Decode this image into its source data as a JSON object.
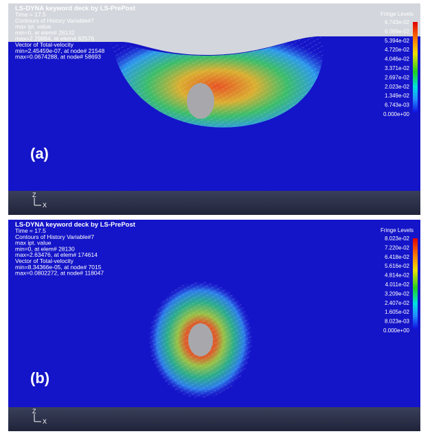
{
  "panels": [
    {
      "title": "LS-DYNA keyword deck by LS-PrePost",
      "info": [
        "Time =      17.5",
        "Contours of History Variable#7",
        "max ipt. value",
        " min=0, at elem# 28132",
        " max=2.29884, at elem# 82576",
        "Vector of Total-velocity",
        " min=2.45459e-07, at node# 21548",
        " max=0.0674288, at node# 58693"
      ],
      "fringe_title": "Fringe Levels",
      "fringe_levels": [
        "6.743e-02",
        "6.069e-02",
        "5.394e-02",
        "4.720e-02",
        "4.046e-02",
        "3.371e-02",
        "2.697e-02",
        "2.023e-02",
        "1.349e-02",
        "6.743e-03",
        "0.000e+00"
      ],
      "label": "(a)",
      "axis_z": "Z",
      "axis_x": "X"
    },
    {
      "title": "LS-DYNA keyword deck by LS-PrePost",
      "info": [
        "Time =      17.5",
        "Contours of History Variable#7",
        "max ipt. value",
        " min=0, at elem# 28130",
        " max=2.63476, at elem# 174614",
        "Vector of Total-velocity",
        " min=8.34366e-05, at node# 7015",
        " max=0.0802272, at node# 118047"
      ],
      "fringe_title": "Fringe Levels",
      "fringe_levels": [
        "8.023e-02",
        "7.220e-02",
        "6.418e-02",
        "5.616e-02",
        "4.814e-02",
        "4.011e-02",
        "3.209e-02",
        "2.407e-02",
        "1.605e-02",
        "8.023e-03",
        "0.000e+00"
      ],
      "label": "(b)",
      "axis_z": "Z",
      "axis_x": "X"
    }
  ]
}
